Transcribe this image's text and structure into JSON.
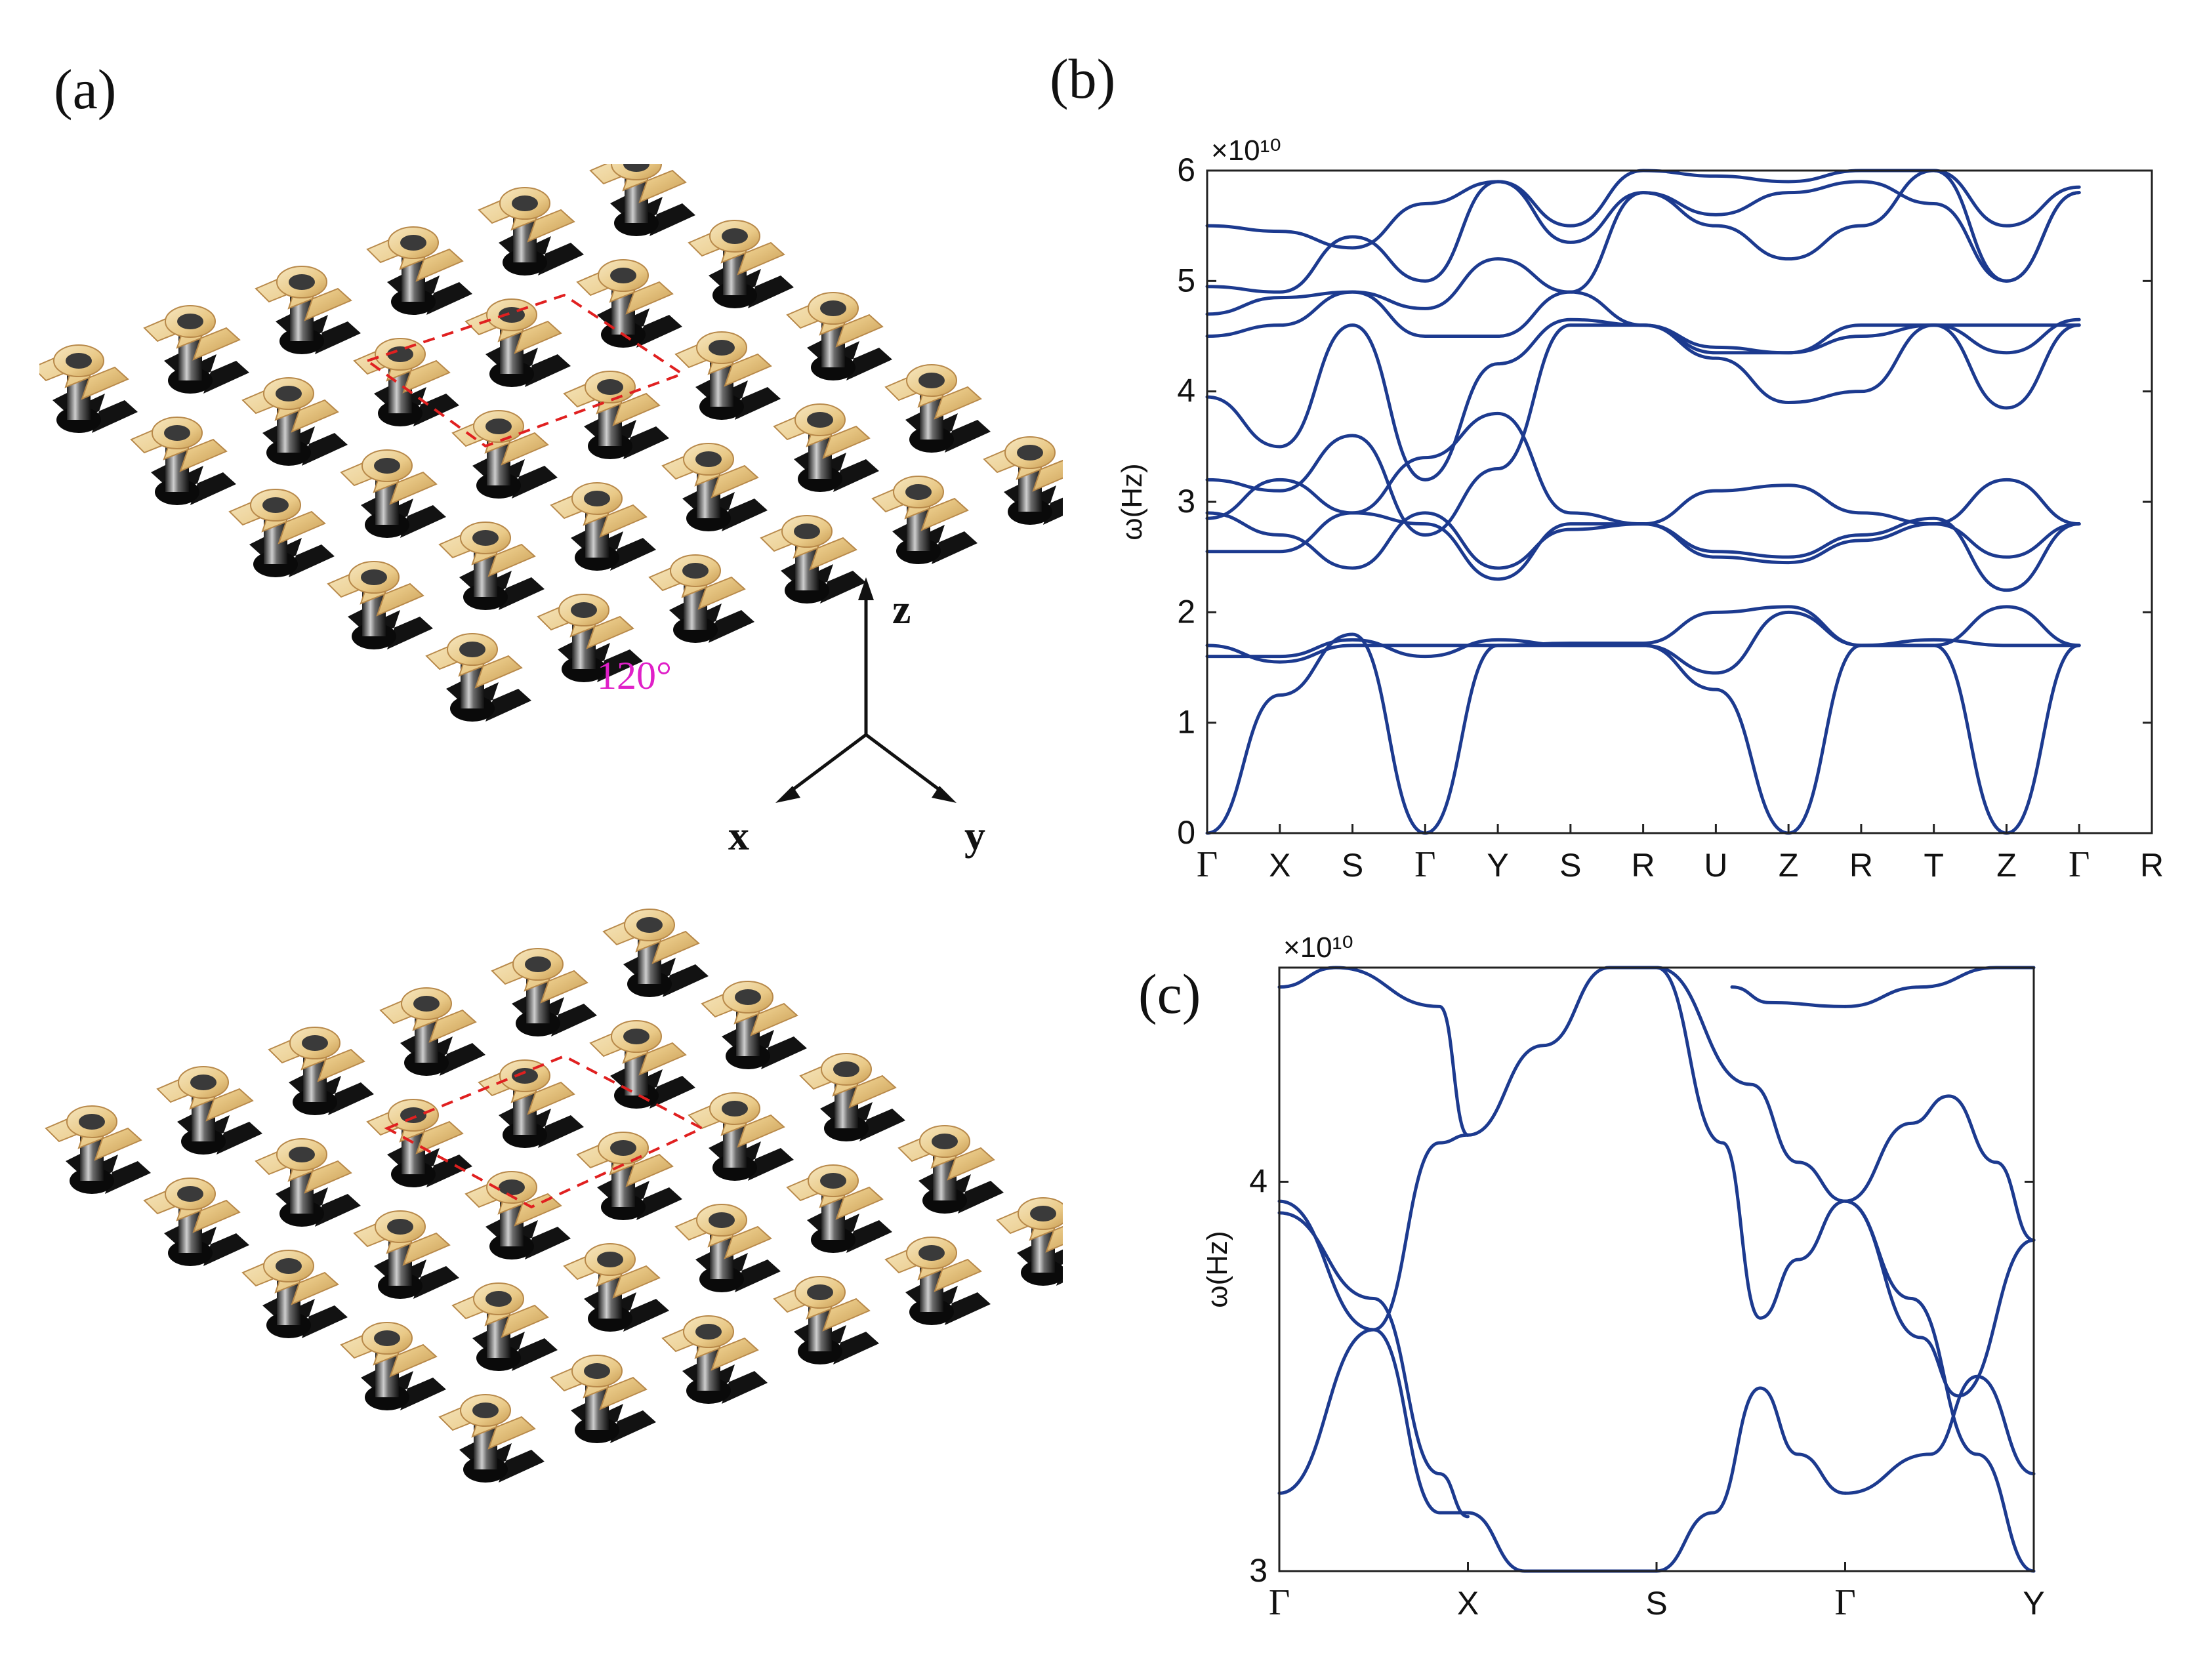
{
  "panel_labels": {
    "a": "(a)",
    "b": "(b)",
    "c": "(c)"
  },
  "figure_a": {
    "angle_label": "120°",
    "axes": {
      "z": "z",
      "x": "x",
      "y": "y"
    }
  },
  "chart_data": [
    {
      "type": "line",
      "panel": "(b)",
      "ylabel": "ω(Hz)",
      "multiplier": "×10¹⁰",
      "ylim": [
        0,
        6
      ],
      "yticks": [
        "0",
        "1",
        "2",
        "3",
        "4",
        "5",
        "6"
      ],
      "x_symmetry_points": [
        "Γ",
        "X",
        "S",
        "Γ",
        "Y",
        "S",
        "R",
        "U",
        "Z",
        "R",
        "T",
        "Z",
        "Γ",
        "R"
      ],
      "series": [
        {
          "values": [
            0.0,
            1.25,
            1.8,
            0.0,
            1.7,
            1.7,
            1.7,
            1.3,
            0.0,
            1.7,
            1.7,
            0.0,
            1.7
          ]
        },
        {
          "values": [
            1.6,
            1.6,
            1.75,
            1.6,
            1.75,
            1.7,
            1.7,
            1.45,
            2.0,
            1.7,
            1.7,
            2.05,
            1.7
          ]
        },
        {
          "values": [
            1.7,
            1.55,
            1.7,
            1.7,
            1.7,
            1.72,
            1.72,
            2.0,
            2.05,
            1.7,
            1.75,
            1.7,
            1.7
          ]
        },
        {
          "values": [
            2.55,
            2.55,
            2.9,
            2.8,
            2.3,
            2.8,
            2.8,
            2.5,
            2.45,
            2.65,
            2.8,
            2.5,
            2.8
          ]
        },
        {
          "values": [
            2.9,
            2.7,
            2.4,
            2.9,
            2.4,
            2.75,
            2.8,
            2.55,
            2.5,
            2.7,
            2.85,
            2.2,
            2.8
          ]
        },
        {
          "values": [
            2.85,
            3.2,
            2.9,
            3.4,
            3.8,
            2.9,
            2.8,
            3.1,
            3.15,
            2.9,
            2.8,
            3.2,
            2.8
          ]
        },
        {
          "values": [
            3.2,
            3.1,
            3.6,
            2.7,
            3.3,
            4.6,
            4.6,
            4.35,
            4.35,
            4.6,
            4.6,
            3.85,
            4.6
          ]
        },
        {
          "values": [
            3.95,
            3.5,
            4.6,
            3.2,
            4.25,
            4.65,
            4.6,
            4.3,
            3.9,
            4.0,
            4.6,
            4.6,
            4.6
          ]
        },
        {
          "values": [
            4.5,
            4.6,
            4.9,
            4.5,
            4.5,
            4.9,
            4.6,
            4.4,
            4.35,
            4.5,
            4.6,
            4.35,
            4.65
          ]
        },
        {
          "values": [
            4.7,
            4.85,
            4.9,
            4.75,
            5.2,
            4.9,
            5.8,
            5.5,
            5.2,
            5.5,
            6.0,
            5.0,
            5.8
          ]
        },
        {
          "values": [
            4.95,
            4.9,
            5.4,
            5.0,
            5.9,
            5.35,
            5.8,
            5.6,
            5.8,
            5.9,
            5.7,
            5.0,
            5.8
          ]
        },
        {
          "values": [
            5.5,
            5.45,
            5.3,
            5.7,
            5.9,
            5.5,
            6.0,
            5.95,
            5.9,
            6.0,
            6.0,
            5.5,
            5.85
          ]
        }
      ]
    },
    {
      "type": "line",
      "panel": "(c)",
      "ylabel": "ω(Hz)",
      "multiplier": "×10¹⁰",
      "ylim": [
        3,
        4.55
      ],
      "yticks": [
        "3",
        "4"
      ],
      "x_symmetry_points": [
        "Γ",
        "X",
        "S",
        "Γ",
        "Y"
      ],
      "series": [
        {
          "x": [
            0.0,
            0.5,
            0.85,
            1.0
          ],
          "values": [
            3.95,
            3.62,
            3.15,
            3.15
          ]
        },
        {
          "x": [
            0.0,
            0.5,
            0.85,
            1.0
          ],
          "values": [
            3.2,
            3.62,
            4.1,
            4.12
          ]
        },
        {
          "x": [
            0.0,
            0.3,
            0.85,
            1.0
          ],
          "values": [
            4.5,
            4.55,
            4.45,
            4.12
          ]
        },
        {
          "x": [
            0.0,
            0.5,
            0.85,
            1.0
          ],
          "values": [
            3.92,
            3.7,
            3.25,
            3.14
          ]
        },
        {
          "x": [
            1.0,
            1.3,
            1.6,
            2.0
          ],
          "values": [
            3.15,
            3.0,
            3.0,
            3.0
          ]
        },
        {
          "x": [
            1.0,
            1.4,
            1.75,
            2.0
          ],
          "values": [
            4.12,
            4.35,
            4.55,
            4.55
          ]
        },
        {
          "x": [
            2.0,
            2.35,
            2.55,
            2.75,
            3.0
          ],
          "values": [
            4.55,
            4.1,
            3.65,
            3.8,
            3.95
          ]
        },
        {
          "x": [
            2.0,
            2.3,
            2.55,
            2.75,
            3.0
          ],
          "values": [
            3.0,
            3.15,
            3.47,
            3.3,
            3.2
          ]
        },
        {
          "x": [
            2.0,
            2.5,
            2.75,
            3.0
          ],
          "values": [
            4.55,
            4.25,
            4.05,
            3.95
          ]
        },
        {
          "x": [
            2.4,
            2.6,
            3.0
          ],
          "values": [
            4.5,
            4.46,
            4.45
          ]
        },
        {
          "x": [
            3.0,
            3.4,
            3.6,
            4.0
          ],
          "values": [
            3.95,
            3.6,
            3.45,
            3.85
          ]
        },
        {
          "x": [
            3.0,
            3.45,
            3.7,
            4.0
          ],
          "values": [
            3.2,
            3.3,
            3.5,
            3.25
          ]
        },
        {
          "x": [
            3.0,
            3.35,
            3.55,
            3.8,
            4.0
          ],
          "values": [
            3.95,
            4.15,
            4.22,
            4.05,
            3.85
          ]
        },
        {
          "x": [
            3.0,
            3.4,
            3.8,
            4.0
          ],
          "values": [
            4.45,
            4.5,
            4.55,
            4.55
          ]
        },
        {
          "x": [
            3.0,
            3.35,
            3.7,
            4.0
          ],
          "values": [
            3.95,
            3.7,
            3.3,
            3.0
          ]
        }
      ]
    }
  ]
}
